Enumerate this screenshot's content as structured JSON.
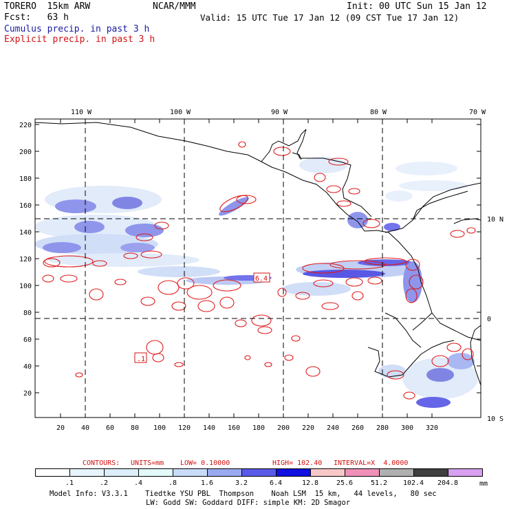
{
  "header": {
    "model": "TORERO  15km ARW",
    "org": "NCAR/MMM",
    "init": "Init: 00 UTC Sun 15 Jan 12",
    "fcst": "Fcst:   63 h",
    "valid": "Valid: 15 UTC Tue 17 Jan 12 (09 CST Tue 17 Jan 12)",
    "cumulus": "Cumulus precip. in past 3 h",
    "explicit": "Explicit precip. in past 3 h"
  },
  "map": {
    "lon_labels": [
      "110 W",
      "100 W",
      "90 W",
      "80 W",
      "70 W"
    ],
    "lat_labels": [
      "10 N",
      "0",
      "10 S"
    ],
    "y_ticks": [
      "220",
      "200",
      "180",
      "160",
      "140",
      "120",
      "100",
      "80",
      "60",
      "40",
      "20"
    ],
    "x_ticks": [
      "20",
      "40",
      "60",
      "80",
      "100",
      "120",
      "140",
      "160",
      "180",
      "200",
      "220",
      "240",
      "260",
      "280",
      "300",
      "320"
    ],
    "boxed_labels": [
      "6.4",
      ".1"
    ]
  },
  "contour_info": {
    "contours": "CONTOURS:",
    "units": "UNITS=mm",
    "low": "LOW= 0.10000",
    "high": "HIGH= 102.40",
    "interval": "INTERVAL=X  4.0000"
  },
  "colorbar": {
    "labels": [
      ".1",
      ".2",
      ".4",
      ".8",
      "1.6",
      "3.2",
      "6.4",
      "12.8",
      "25.6",
      "51.2",
      "102.4",
      "204.8"
    ],
    "colors": [
      "#ffffff",
      "#e8f4fc",
      "#dceefa",
      "#e4fafa",
      "#c8dcf8",
      "#9aaaf0",
      "#5a5ae8",
      "#1010e0",
      "#f8c8c8",
      "#f090b8",
      "#b0b0b0",
      "#404040",
      "#d8a0f0"
    ],
    "unit": "mm"
  },
  "footer": {
    "line1": "Model Info: V3.3.1    Tiedtke YSU PBL  Thompson    Noah LSM  15 km,   44 levels,   80 sec",
    "line2": "LW: Godd SW: Goddard DIFF: simple KM: 2D Smagor"
  }
}
